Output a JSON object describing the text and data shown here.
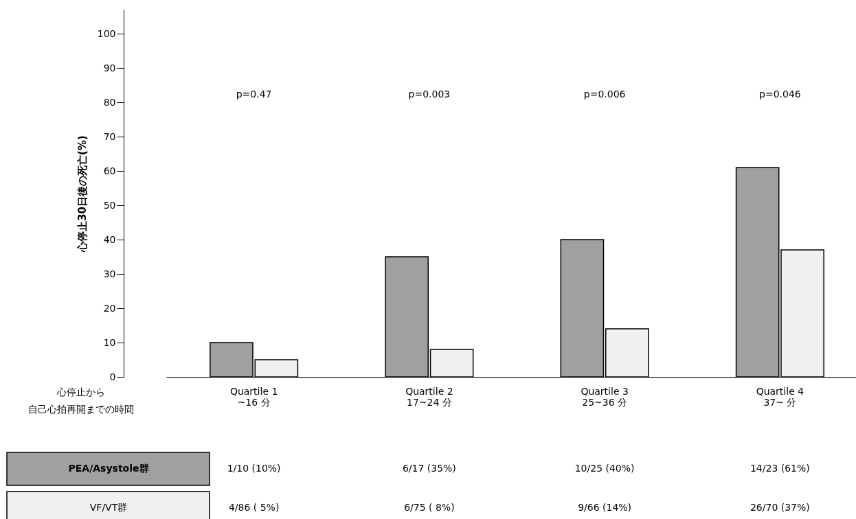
{
  "chart_data": {
    "type": "bar",
    "ylabel": "心停止30日後の死亡(%)",
    "xlabel": "心停止から自己心拍再開までの時間",
    "categories": [
      "Quartile 1\n~16 分",
      "Quartile 2\n17~24 分",
      "Quartile 3\n25~36 分",
      "Quartile 4\n37~ 分"
    ],
    "series": [
      {
        "name": "PEA/Asystole群",
        "color": "#a0a0a0",
        "values": [
          10,
          35,
          40,
          61
        ],
        "value_labels": [
          "1/10 (10%)",
          "6/17 (35%)",
          "10/25 (40%)",
          "14/23 (61%)"
        ]
      },
      {
        "name": "VF/VT群",
        "color": "#f0f0f0",
        "values": [
          5,
          8,
          14,
          37
        ],
        "value_labels": [
          "4/86 ( 5%)",
          "6/75 ( 8%)",
          "9/66 (14%)",
          "26/70 (37%)"
        ]
      }
    ],
    "ylim": [
      0,
      107
    ],
    "yticks": [
      0,
      10,
      20,
      30,
      40,
      50,
      60,
      70,
      80,
      90,
      100
    ],
    "annotations": [
      "p=0.47",
      "p=0.003",
      "p=0.006",
      "p=0.046"
    ],
    "grid": false,
    "legend": "bottom left"
  }
}
